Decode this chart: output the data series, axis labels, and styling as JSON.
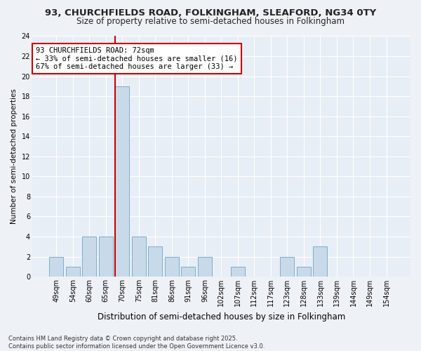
{
  "title_line1": "93, CHURCHFIELDS ROAD, FOLKINGHAM, SLEAFORD, NG34 0TY",
  "title_line2": "Size of property relative to semi-detached houses in Folkingham",
  "xlabel": "Distribution of semi-detached houses by size in Folkingham",
  "ylabel": "Number of semi-detached properties",
  "categories": [
    "49sqm",
    "54sqm",
    "60sqm",
    "65sqm",
    "70sqm",
    "75sqm",
    "81sqm",
    "86sqm",
    "91sqm",
    "96sqm",
    "102sqm",
    "107sqm",
    "112sqm",
    "117sqm",
    "123sqm",
    "128sqm",
    "133sqm",
    "139sqm",
    "144sqm",
    "149sqm",
    "154sqm"
  ],
  "values": [
    2,
    1,
    4,
    4,
    19,
    4,
    3,
    2,
    1,
    2,
    0,
    1,
    0,
    0,
    2,
    1,
    3,
    0,
    0,
    0,
    0
  ],
  "bar_color": "#c8daea",
  "bar_edge_color": "#7aaec8",
  "highlight_index": 4,
  "highlight_line_color": "#cc0000",
  "annotation_title": "93 CHURCHFIELDS ROAD: 72sqm",
  "annotation_line1": "← 33% of semi-detached houses are smaller (16)",
  "annotation_line2": "67% of semi-detached houses are larger (33) →",
  "annotation_box_color": "#cc0000",
  "ylim": [
    0,
    24
  ],
  "yticks": [
    0,
    2,
    4,
    6,
    8,
    10,
    12,
    14,
    16,
    18,
    20,
    22,
    24
  ],
  "footer_line1": "Contains HM Land Registry data © Crown copyright and database right 2025.",
  "footer_line2": "Contains public sector information licensed under the Open Government Licence v3.0.",
  "bg_color": "#eef2f7",
  "plot_bg_color": "#e8eef5",
  "grid_color": "#ffffff",
  "title1_fontsize": 9.5,
  "title2_fontsize": 8.5,
  "ylabel_fontsize": 7.5,
  "xlabel_fontsize": 8.5,
  "tick_fontsize": 7,
  "annot_fontsize": 7.5,
  "footer_fontsize": 6
}
